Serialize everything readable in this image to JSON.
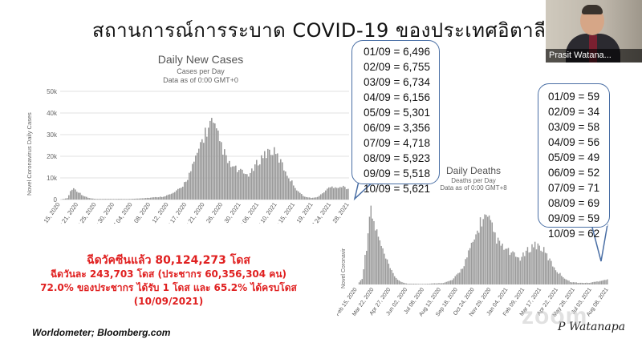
{
  "slide": {
    "title": "สถานการณ์การระบาด COVID-19 ของประเทศอิตาลี",
    "source": "Worldometer; Bloomberg.com",
    "signature": "P Watanapa"
  },
  "webcam": {
    "participant_name": "Prasit Watana..."
  },
  "watermark": "zoom",
  "stats": {
    "line1": "ฉีดวัคซีนแล้ว 80,124,273 โดส",
    "line2": "ฉีดวันละ 243,703 โดส (ประชากร 60,356,304 คน)",
    "line3": "72.0% ของประชากร ได้รับ 1 โดส และ 65.2% ได้ครบโดส",
    "line4": "(10/09/2021)"
  },
  "cases_callout": [
    "01/09 = 6,496",
    "02/09 = 6,755",
    "03/09 = 6,734",
    "04/09 = 6,156",
    "05/09 = 5,301",
    "06/09 = 3,356",
    "07/09 = 4,718",
    "08/09 = 5,923",
    "09/09 = 5,518",
    "10/09 = 5,621"
  ],
  "deaths_callout": [
    "01/09 = 59",
    "02/09 = 34",
    "03/09 = 58",
    "04/09 = 56",
    "05/09 = 49",
    "06/09 = 52",
    "07/09 = 71",
    "08/09 = 69",
    "09/09 = 59",
    "10/09 = 62"
  ],
  "chart_data": [
    {
      "type": "bar",
      "title": "Daily New Cases",
      "subtitle": "Cases per Day",
      "note": "Data as of 0:00 GMT+0",
      "ylabel": "Novel Coronavirus Daily Cases",
      "ylim": [
        0,
        50000
      ],
      "yticks": [
        "0",
        "10k",
        "20k",
        "30k",
        "40k",
        "50k"
      ],
      "xticks": [
        "Feb 15, 2020",
        "Mar 21, 2020",
        "Apr 25, 2020",
        "May 30, 2020",
        "Jul 04, 2020",
        "Aug 08, 2020",
        "Sep 12, 2020",
        "Oct 17, 2020",
        "Nov 21, 2020",
        "Dec 26, 2020",
        "Jan 30, 2021",
        "Mar 06, 2021",
        "Apr 10, 2021",
        "May 15, 2021",
        "Jun 19, 2021",
        "Jul 24, 2021",
        "Aug 28, 2021"
      ],
      "grid": true,
      "series_profile": [
        [
          0,
          0
        ],
        [
          3,
          800
        ],
        [
          4,
          4000
        ],
        [
          5,
          5800
        ],
        [
          6,
          5500
        ],
        [
          8,
          3500
        ],
        [
          10,
          1800
        ],
        [
          12,
          800
        ],
        [
          15,
          300
        ],
        [
          22,
          300
        ],
        [
          30,
          300
        ],
        [
          38,
          900
        ],
        [
          44,
          1500
        ],
        [
          48,
          3000
        ],
        [
          52,
          6000
        ],
        [
          55,
          12000
        ],
        [
          58,
          20000
        ],
        [
          60,
          28000
        ],
        [
          62,
          34000
        ],
        [
          64,
          37500
        ],
        [
          65,
          40000
        ],
        [
          66,
          37000
        ],
        [
          68,
          32000
        ],
        [
          70,
          26000
        ],
        [
          72,
          19000
        ],
        [
          74,
          17000
        ],
        [
          76,
          15500
        ],
        [
          78,
          14000
        ],
        [
          80,
          13000
        ],
        [
          82,
          13500
        ],
        [
          84,
          17500
        ],
        [
          86,
          21000
        ],
        [
          88,
          23500
        ],
        [
          90,
          25500
        ],
        [
          92,
          24500
        ],
        [
          94,
          21500
        ],
        [
          96,
          17000
        ],
        [
          98,
          12500
        ],
        [
          100,
          8500
        ],
        [
          102,
          5000
        ],
        [
          104,
          2500
        ],
        [
          106,
          1200
        ],
        [
          108,
          900
        ],
        [
          110,
          1000
        ],
        [
          112,
          2200
        ],
        [
          114,
          4500
        ],
        [
          116,
          6200
        ],
        [
          118,
          6800
        ],
        [
          120,
          6500
        ],
        [
          122,
          6600
        ],
        [
          124,
          5800
        ]
      ]
    },
    {
      "type": "bar",
      "title": "Daily Deaths",
      "subtitle": "Deaths per Day",
      "note": "Data as of 0:00 GMT+8",
      "ylabel": "Novel Coronavir",
      "xticks": [
        "Feb 15, 2020",
        "Mar 22, 2020",
        "Apr 27, 2020",
        "Jun 02, 2020",
        "Jul 08, 2020",
        "Aug 13, 2020",
        "Sep 18, 2020",
        "Oct 24, 2020",
        "Nov 29, 2020",
        "Jan 04, 2021",
        "Feb 09, 2021",
        "Mar 17, 2021",
        "Apr 22, 2021",
        "May 28, 2021",
        "Jul 03, 2021",
        "Aug 08, 2021"
      ],
      "grid": false,
      "series_profile": [
        [
          0,
          0
        ],
        [
          2,
          80
        ],
        [
          4,
          500
        ],
        [
          5,
          850
        ],
        [
          6,
          900
        ],
        [
          7,
          780
        ],
        [
          9,
          600
        ],
        [
          11,
          420
        ],
        [
          13,
          280
        ],
        [
          15,
          160
        ],
        [
          17,
          80
        ],
        [
          19,
          30
        ],
        [
          22,
          10
        ],
        [
          30,
          8
        ],
        [
          38,
          20
        ],
        [
          42,
          60
        ],
        [
          46,
          200
        ],
        [
          49,
          400
        ],
        [
          52,
          600
        ],
        [
          54,
          780
        ],
        [
          56,
          830
        ],
        [
          58,
          780
        ],
        [
          60,
          650
        ],
        [
          62,
          520
        ],
        [
          64,
          460
        ],
        [
          66,
          420
        ],
        [
          68,
          380
        ],
        [
          70,
          340
        ],
        [
          72,
          330
        ],
        [
          74,
          390
        ],
        [
          76,
          460
        ],
        [
          78,
          500
        ],
        [
          80,
          480
        ],
        [
          82,
          420
        ],
        [
          84,
          330
        ],
        [
          86,
          240
        ],
        [
          88,
          160
        ],
        [
          90,
          110
        ],
        [
          92,
          60
        ],
        [
          94,
          30
        ],
        [
          98,
          20
        ],
        [
          102,
          20
        ],
        [
          106,
          40
        ],
        [
          108,
          55
        ],
        [
          110,
          60
        ]
      ]
    }
  ]
}
